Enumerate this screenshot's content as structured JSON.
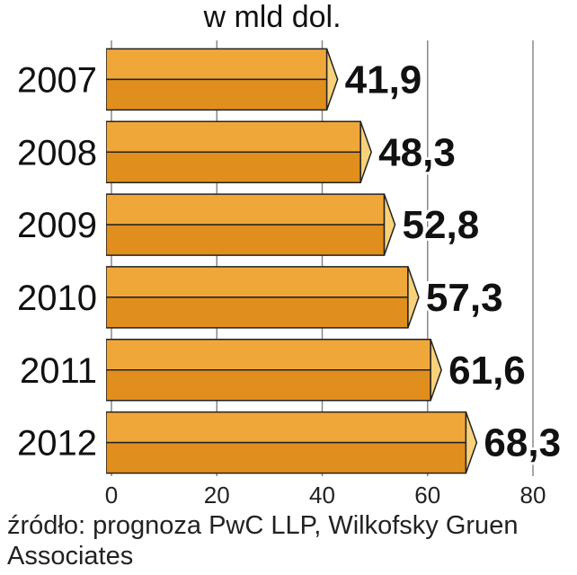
{
  "chart_data": {
    "type": "bar",
    "orientation": "horizontal",
    "unit_label": "w mld dol.",
    "categories": [
      "2007",
      "2008",
      "2009",
      "2010",
      "2011",
      "2012"
    ],
    "values": [
      41.9,
      48.3,
      52.8,
      57.3,
      61.6,
      68.3
    ],
    "value_labels": [
      "41,9",
      "48,3",
      "52,8",
      "57,3",
      "61,6",
      "68,3"
    ],
    "xlim": [
      0,
      80
    ],
    "x_ticks": [
      "0",
      "20",
      "40",
      "60",
      "80"
    ],
    "grid": true,
    "bar_color": "#f0a73a",
    "bar_dark_color": "#e08e1e",
    "bar_end_color": "#f8d27a"
  },
  "source": "źródło: prognoza PwC LLP, Wilkofsky Gruen Associates"
}
